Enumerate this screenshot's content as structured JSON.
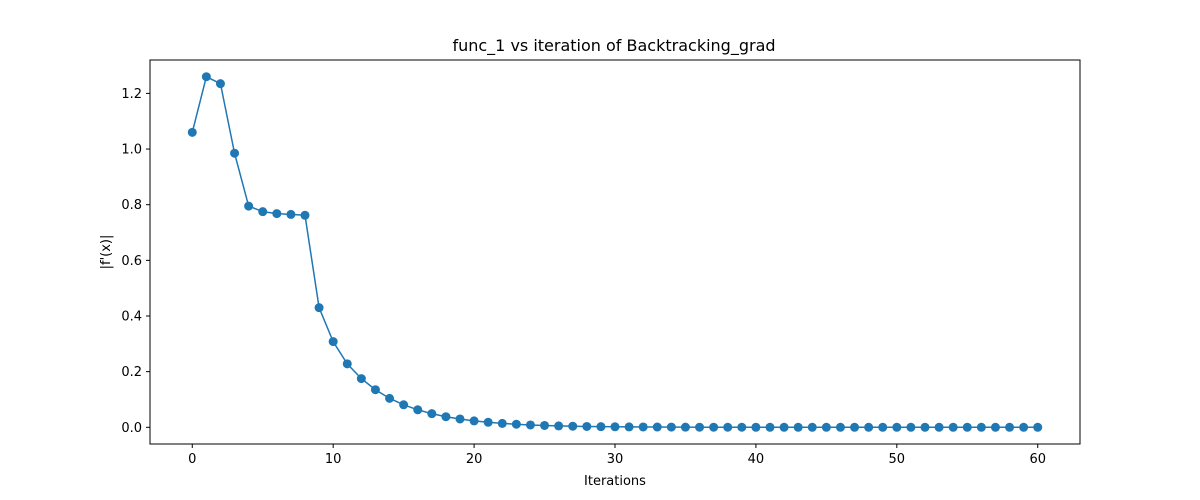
{
  "chart_data": {
    "type": "line",
    "title": "func_1 vs iteration of Backtracking_grad",
    "xlabel": "Iterations",
    "ylabel": "|f'(x)|",
    "xlim": [
      -3,
      63
    ],
    "ylim": [
      -0.06,
      1.32
    ],
    "xticks": [
      0,
      10,
      20,
      30,
      40,
      50,
      60
    ],
    "yticks": [
      0.0,
      0.2,
      0.4,
      0.6,
      0.8,
      1.0,
      1.2
    ],
    "grid": false,
    "color": "#1f77b4",
    "marker": "circle",
    "x": [
      0,
      1,
      2,
      3,
      4,
      5,
      6,
      7,
      8,
      9,
      10,
      11,
      12,
      13,
      14,
      15,
      16,
      17,
      18,
      19,
      20,
      21,
      22,
      23,
      24,
      25,
      26,
      27,
      28,
      29,
      30,
      31,
      32,
      33,
      34,
      35,
      36,
      37,
      38,
      39,
      40,
      41,
      42,
      43,
      44,
      45,
      46,
      47,
      48,
      49,
      50,
      51,
      52,
      53,
      54,
      55,
      56,
      57,
      58,
      59,
      60
    ],
    "y": [
      1.06,
      1.26,
      1.235,
      0.985,
      0.795,
      0.775,
      0.768,
      0.765,
      0.762,
      0.43,
      0.308,
      0.228,
      0.175,
      0.135,
      0.104,
      0.081,
      0.063,
      0.049,
      0.038,
      0.03,
      0.023,
      0.018,
      0.014,
      0.011,
      0.0085,
      0.0066,
      0.0051,
      0.004,
      0.0031,
      0.0024,
      0.0019,
      0.0015,
      0.0012,
      0.0009,
      0.0007,
      0.0005,
      0.0004,
      0.0003,
      0.0002,
      0.0002,
      0.0001,
      0.0001,
      0.0001,
      0.0001,
      0.0,
      0.0,
      0.0,
      0.0,
      0.0,
      0.0,
      0.0,
      0.0,
      0.0,
      0.0,
      0.0,
      0.0,
      0.0,
      0.0,
      0.0,
      0.0,
      0.0
    ]
  }
}
